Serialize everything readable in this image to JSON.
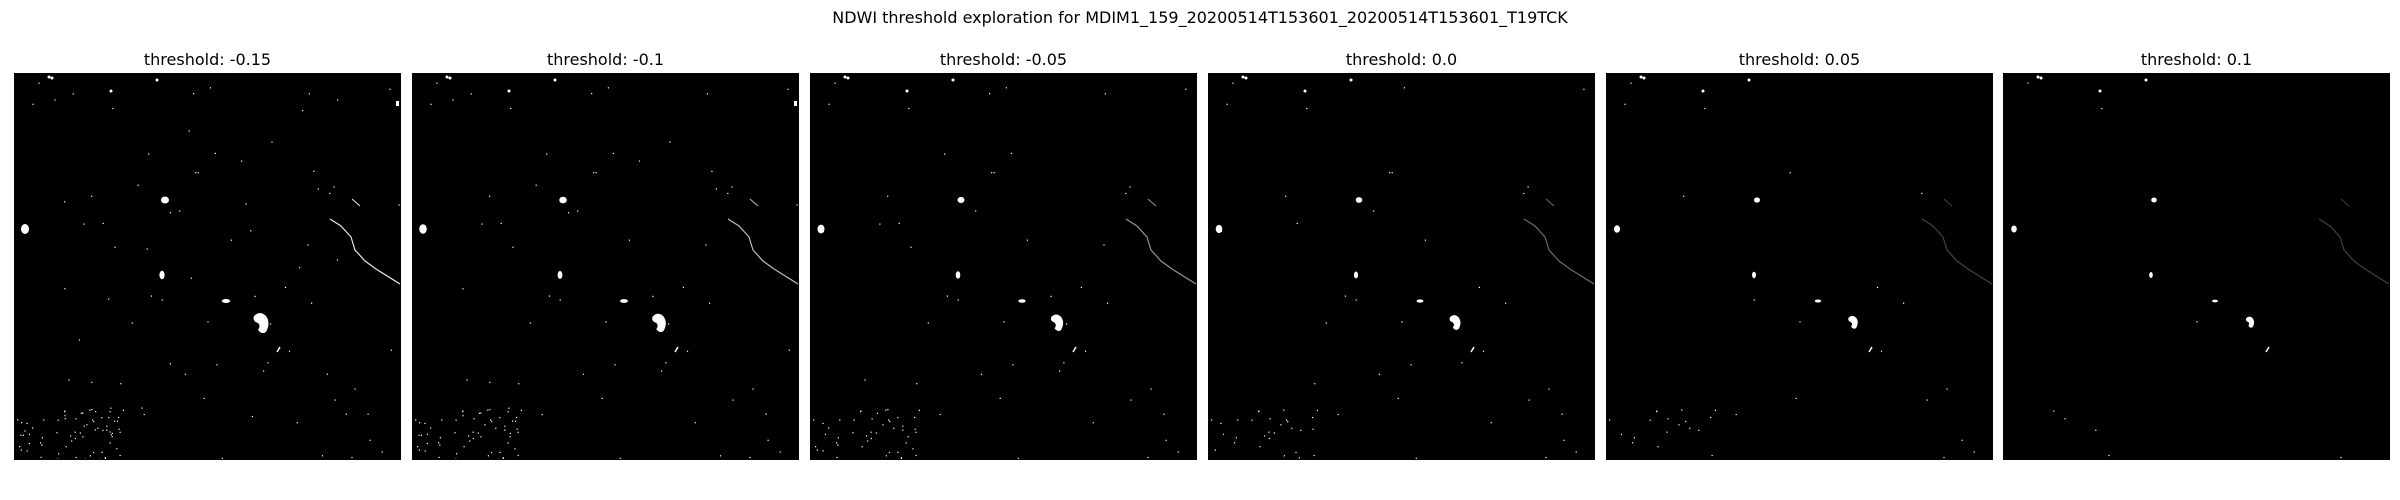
{
  "figure": {
    "title": "NDWI threshold exploration for MDIM1_159_20200514T153601_20200514T153601_T19TCK",
    "background_color": "#ffffff",
    "mask_color": "#000000",
    "water_color": "#ffffff"
  },
  "panels": [
    {
      "title": "threshold: -0.15",
      "threshold": -0.15
    },
    {
      "title": "threshold: -0.1",
      "threshold": -0.1
    },
    {
      "title": "threshold: -0.05",
      "threshold": -0.05
    },
    {
      "title": "threshold: 0.0",
      "threshold": 0.0
    },
    {
      "title": "threshold: 0.05",
      "threshold": 0.05
    },
    {
      "title": "threshold: 0.1",
      "threshold": 0.1
    }
  ]
}
